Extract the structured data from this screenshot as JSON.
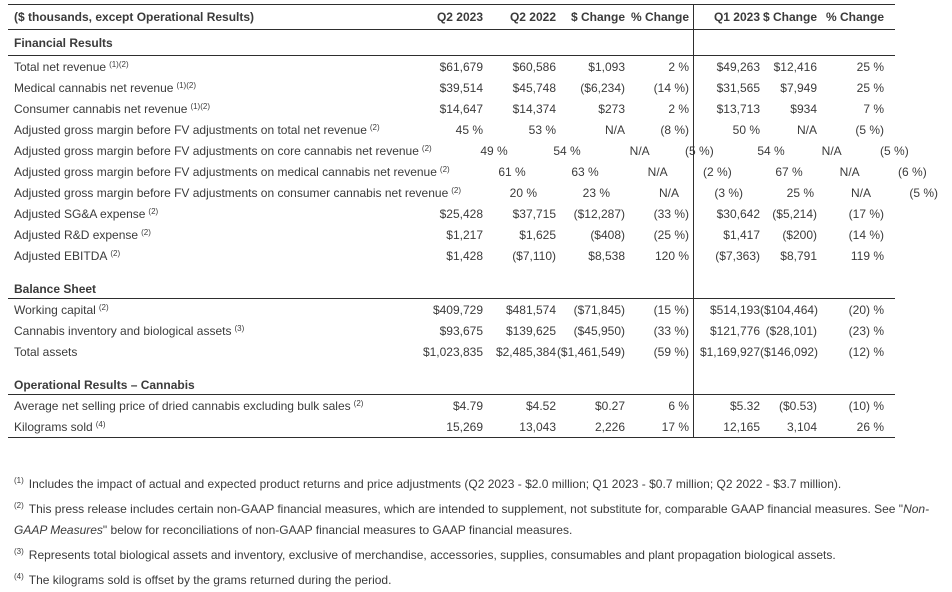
{
  "table": {
    "header": {
      "label": "($ thousands, except Operational Results)",
      "columns": [
        "Q2 2023",
        "Q2 2022",
        "$ Change",
        "% Change",
        "Q1 2023",
        "$ Change",
        "% Change"
      ]
    },
    "sections": {
      "financial": "Financial Results",
      "balance": "Balance Sheet",
      "operational": "Operational Results – Cannabis"
    },
    "financial_rows": [
      {
        "label": "Total net revenue",
        "sup": "(1)(2)",
        "v": [
          "$61,679",
          "$60,586",
          "$1,093",
          "2 %",
          "$49,263",
          "$12,416",
          "25 %"
        ]
      },
      {
        "label": "Medical cannabis net revenue",
        "sup": "(1)(2)",
        "v": [
          "$39,514",
          "$45,748",
          "($6,234)",
          "(14 %)",
          "$31,565",
          "$7,949",
          "25 %"
        ]
      },
      {
        "label": "Consumer cannabis net revenue",
        "sup": "(1)(2)",
        "v": [
          "$14,647",
          "$14,374",
          "$273",
          "2 %",
          "$13,713",
          "$934",
          "7 %"
        ]
      },
      {
        "label": "Adjusted gross margin before FV adjustments on total net revenue",
        "sup": "(2)",
        "v": [
          "45 %",
          "53 %",
          "N/A",
          "(8 %)",
          "50 %",
          "N/A",
          "(5 %)"
        ]
      },
      {
        "label": "Adjusted gross margin before FV adjustments on core cannabis net revenue",
        "sup": "(2)",
        "v": [
          "49 %",
          "54 %",
          "N/A",
          "(5 %)",
          "54 %",
          "N/A",
          "(5 %)"
        ]
      },
      {
        "label": "Adjusted gross margin before FV adjustments on medical cannabis net revenue",
        "sup": "(2)",
        "v": [
          "61 %",
          "63 %",
          "N/A",
          "(2 %)",
          "67 %",
          "N/A",
          "(6 %)"
        ]
      },
      {
        "label": "Adjusted gross margin before FV adjustments on consumer cannabis net revenue",
        "sup": "(2)",
        "v": [
          "20 %",
          "23 %",
          "N/A",
          "(3 %)",
          "25 %",
          "N/A",
          "(5 %)"
        ]
      },
      {
        "label": "Adjusted SG&A expense",
        "sup": "(2)",
        "v": [
          "$25,428",
          "$37,715",
          "($12,287)",
          "(33 %)",
          "$30,642",
          "($5,214)",
          "(17 %)"
        ]
      },
      {
        "label": "Adjusted R&D expense",
        "sup": "(2)",
        "v": [
          "$1,217",
          "$1,625",
          "($408)",
          "(25 %)",
          "$1,417",
          "($200)",
          "(14 %)"
        ]
      },
      {
        "label": "Adjusted EBITDA",
        "sup": "(2)",
        "v": [
          "$1,428",
          "($7,110)",
          "$8,538",
          "120 %",
          "($7,363)",
          "$8,791",
          "119 %"
        ]
      }
    ],
    "balance_rows": [
      {
        "label": "Working capital",
        "sup": "(2)",
        "v": [
          "$409,729",
          "$481,574",
          "($71,845)",
          "(15 %)",
          "$514,193",
          "($104,464)",
          "(20) %"
        ]
      },
      {
        "label": "Cannabis inventory and biological assets",
        "sup": "(3)",
        "v": [
          "$93,675",
          "$139,625",
          "($45,950)",
          "(33 %)",
          "$121,776",
          "($28,101)",
          "(23) %"
        ]
      },
      {
        "label": "Total assets",
        "sup": "",
        "v": [
          "$1,023,835",
          "$2,485,384",
          "($1,461,549)",
          "(59 %)",
          "$1,169,927",
          "($146,092)",
          "(12) %"
        ]
      }
    ],
    "operational_rows": [
      {
        "label": "Average net selling price of dried cannabis excluding bulk sales",
        "sup": "(2)",
        "v": [
          "$4.79",
          "$4.52",
          "$0.27",
          "6 %",
          "$5.32",
          "($0.53)",
          "(10) %"
        ]
      },
      {
        "label": "Kilograms sold",
        "sup": "(4)",
        "v": [
          "15,269",
          "13,043",
          "2,226",
          "17 %",
          "12,165",
          "3,104",
          "26 %"
        ]
      }
    ]
  },
  "footnotes": {
    "fn1": {
      "marker": "(1)",
      "text": "Includes the impact of actual and expected product returns and price adjustments (Q2 2023 - $2.0 million; Q1 2023 - $0.7 million; Q2 2022 - $3.7 million)."
    },
    "fn2": {
      "marker": "(2)",
      "pre": "This press release includes certain non-GAAP financial measures, which are intended to supplement, not substitute for, comparable GAAP financial measures. See \"",
      "italic": "Non-GAAP Measures",
      "post": "\" below for reconciliations of non-GAAP financial measures to GAAP financial measures."
    },
    "fn3": {
      "marker": "(3)",
      "text": "Represents total biological assets and inventory, exclusive of merchandise, accessories, supplies, consumables and plant propagation biological assets."
    },
    "fn4": {
      "marker": "(4)",
      "text": "The kilograms sold is offset by the grams returned during the period."
    }
  }
}
